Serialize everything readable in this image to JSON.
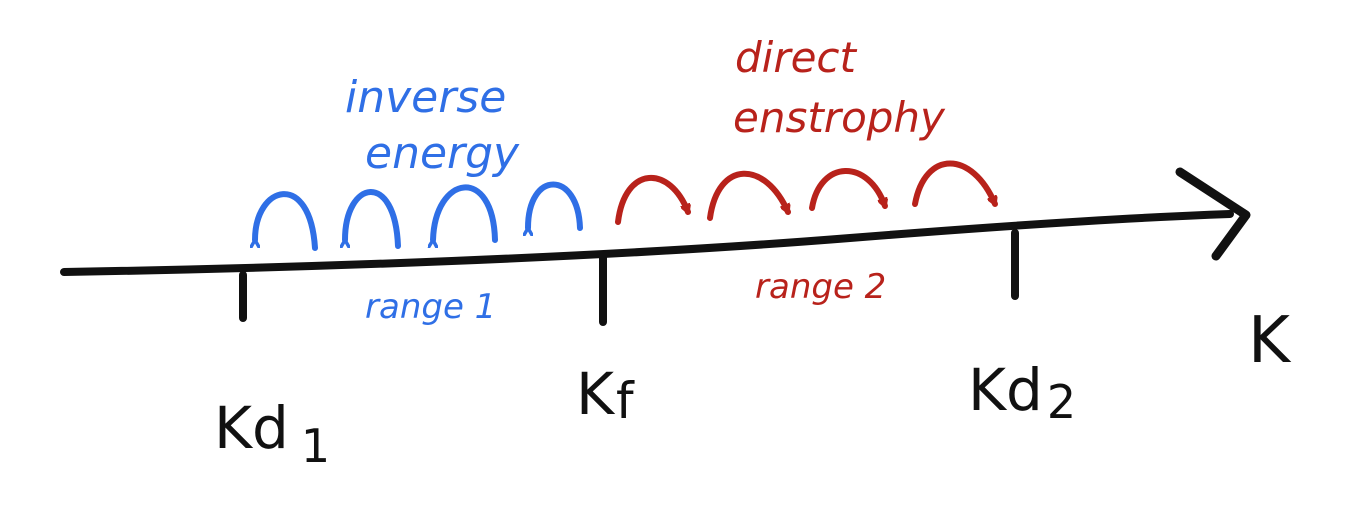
{
  "colors": {
    "axis": "#111111",
    "inverse": "#2f6fe6",
    "direct": "#b8221b"
  },
  "axis": {
    "label": "K"
  },
  "ticks": [
    {
      "id": "kd1",
      "base": "Kd",
      "sub": "1"
    },
    {
      "id": "kf",
      "base": "K",
      "sub": "f"
    },
    {
      "id": "kd2",
      "base": "Kd",
      "sub": "2"
    }
  ],
  "ranges": {
    "range1": "range 1",
    "range2": "range 2"
  },
  "cascades": {
    "inverse": {
      "line1": "inverse",
      "line2": "energy",
      "direction": "left",
      "count": 4
    },
    "direct": {
      "line1": "direct",
      "line2": "enstrophy",
      "direction": "right",
      "count": 4
    }
  }
}
